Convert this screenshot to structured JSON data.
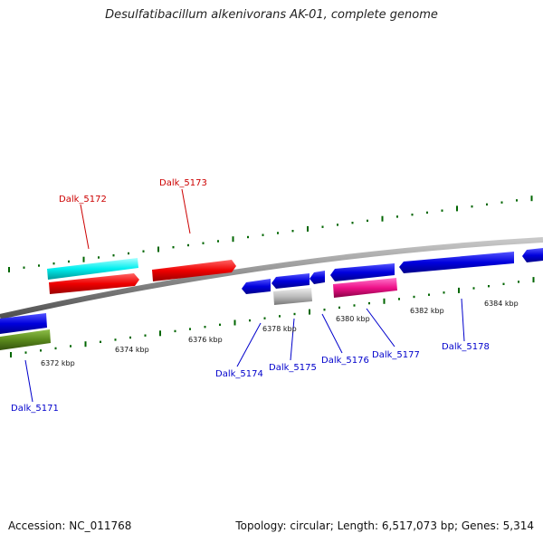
{
  "header": {
    "title": "Desulfatibacillum alkenivorans AK-01, complete genome"
  },
  "footer": {
    "accession": "Accession: NC_011768",
    "topology": "Topology: circular; Length: 6,517,073 bp; Genes: 5,314"
  },
  "colors": {
    "backbone": "#808080",
    "forward_label": "#cc0000",
    "reverse_label": "#0000cc",
    "tick": "#006600",
    "gene_blue": "#0000dd",
    "gene_red": "#ee0000",
    "gene_cyan": "#00eeee",
    "gene_olive": "#5a8a1c",
    "gene_gray": "#bdbdbd",
    "gene_magenta": "#ee1188"
  },
  "scale": {
    "tick_labels": [
      "6372 kbp",
      "6374 kbp",
      "6376 kbp",
      "6378 kbp",
      "6380 kbp",
      "6382 kbp",
      "6384 kbp"
    ]
  },
  "genes": [
    {
      "label": "Dalk_5171",
      "strand": "reverse"
    },
    {
      "label": "Dalk_5172",
      "strand": "forward"
    },
    {
      "label": "Dalk_5173",
      "strand": "forward"
    },
    {
      "label": "Dalk_5174",
      "strand": "reverse"
    },
    {
      "label": "Dalk_5175",
      "strand": "reverse"
    },
    {
      "label": "Dalk_5176",
      "strand": "reverse"
    },
    {
      "label": "Dalk_5177",
      "strand": "reverse"
    },
    {
      "label": "Dalk_5178",
      "strand": "reverse"
    }
  ]
}
